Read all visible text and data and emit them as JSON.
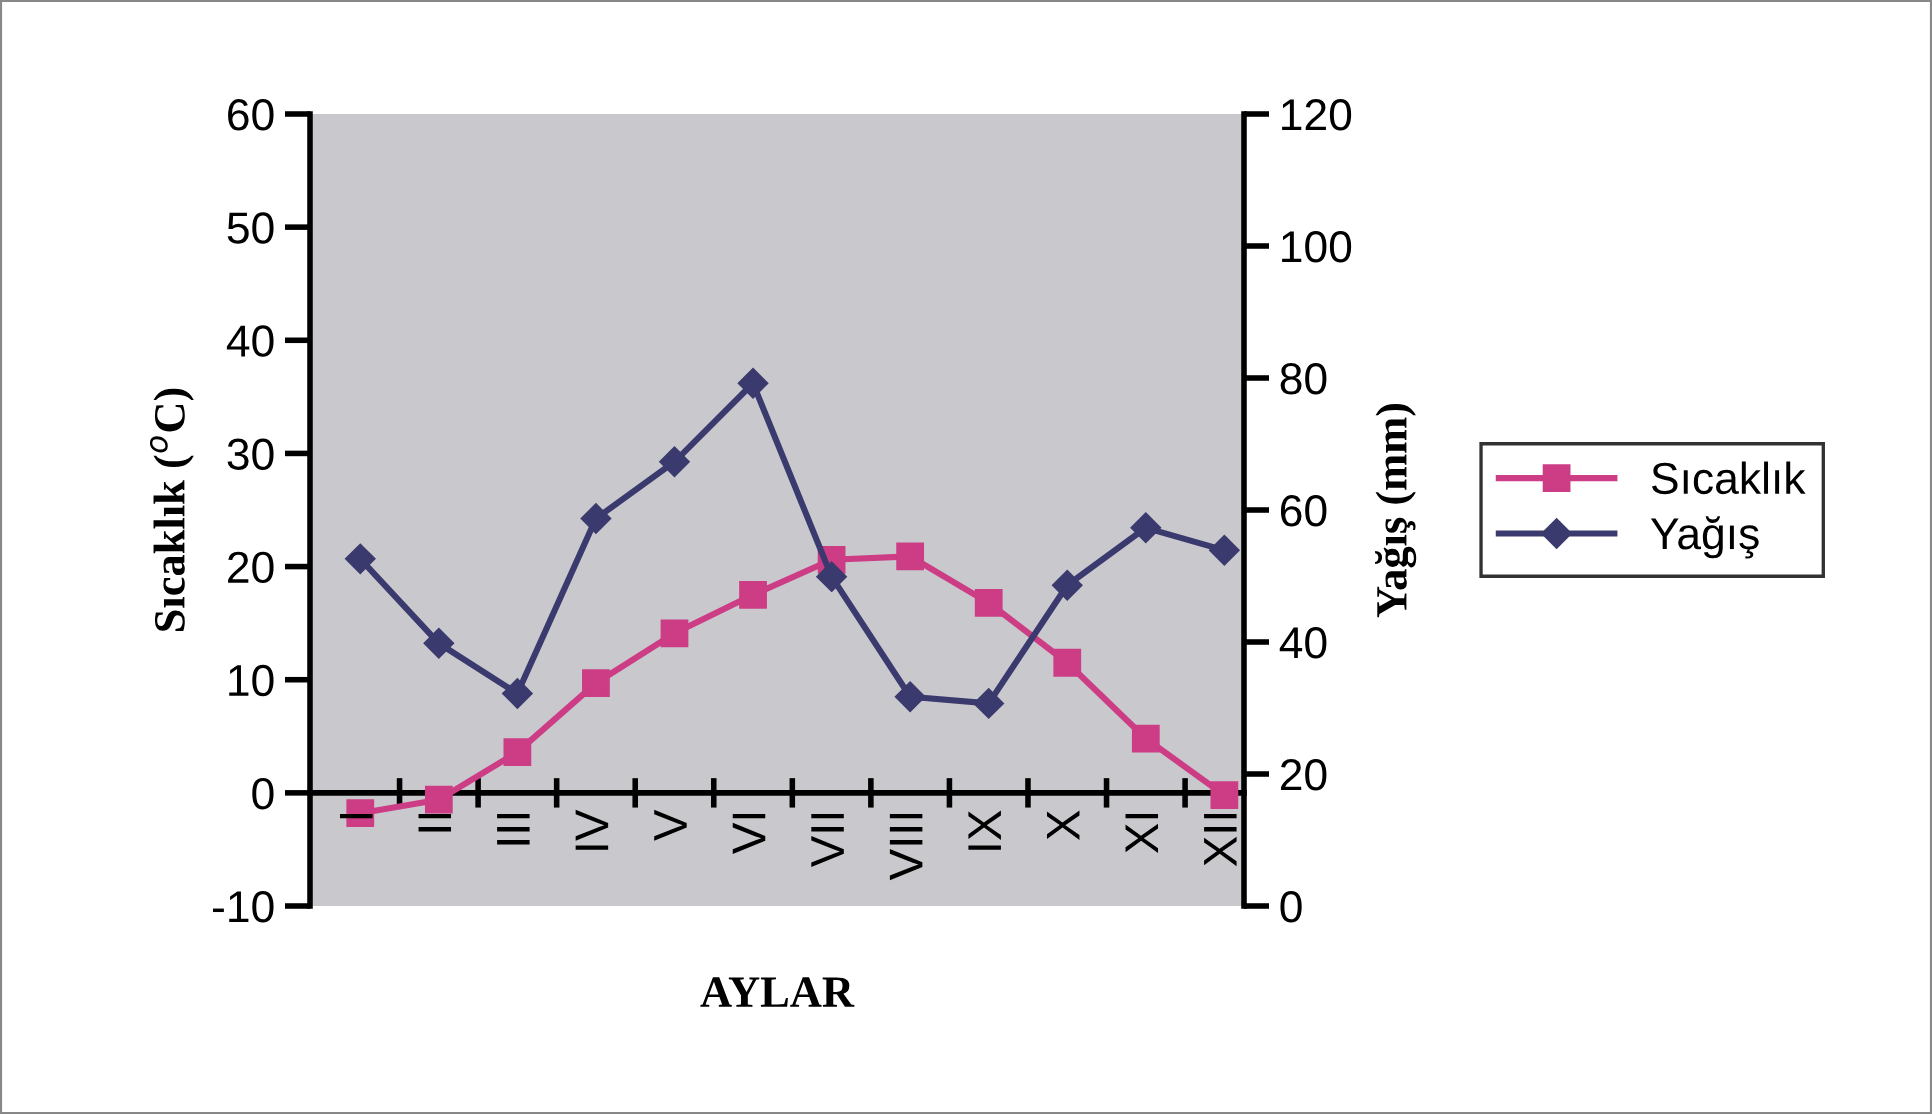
{
  "chart_data": {
    "type": "line",
    "xlabel": "AYLAR",
    "ylabel": "Sıcaklık ($^{o}$C)",
    "y2label": "Yağış (mm)",
    "categories": [
      "I",
      "II",
      "III",
      "IV",
      "V",
      "VI",
      "VII",
      "VIII",
      "IX",
      "X",
      "XI",
      "XII"
    ],
    "series": [
      {
        "name": "Sıcaklık",
        "color": "#cc3d85",
        "marker": "square",
        "values": [
          -1.8,
          -0.6,
          3.6,
          9.7,
          14.1,
          17.5,
          20.6,
          20.9,
          16.8,
          11.5,
          4.8,
          -0.2
        ]
      },
      {
        "name": "Yağış",
        "color": "#3a3a6e",
        "marker": "diamond",
        "axis": "y2",
        "values": [
          52.6,
          39.8,
          32.2,
          58.7,
          67.3,
          79.2,
          49.9,
          31.7,
          30.7,
          48.6,
          57.3,
          53.9
        ]
      }
    ],
    "ylim": [
      -10,
      60
    ],
    "yticks": [
      -10,
      0,
      10,
      20,
      30,
      40,
      50,
      60
    ],
    "y2lim": [
      0,
      120
    ],
    "y2ticks": [
      0,
      20,
      40,
      60,
      80,
      100,
      120
    ],
    "grid": false,
    "legend": "right"
  }
}
